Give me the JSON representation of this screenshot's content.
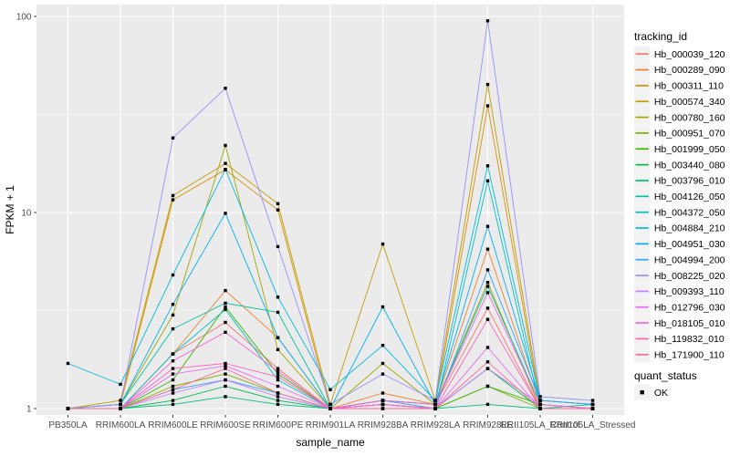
{
  "chart_data": {
    "type": "line",
    "title": "",
    "xlabel": "sample_name",
    "ylabel": "FPKM + 1",
    "y_scale": "log10",
    "ylim": [
      0.95,
      110
    ],
    "y_ticks": [
      1,
      10,
      100
    ],
    "y_tick_labels": [
      "1",
      "10",
      "100"
    ],
    "y_minor_ticks": [
      3.1623,
      31.623
    ],
    "grid": true,
    "panel_background": "#EBEBEB",
    "gridline_color": "#FFFFFF",
    "point_shape": "filled-square",
    "point_color": "#000000",
    "categories": [
      "PB350LA",
      "RRIM600LA",
      "RRIM600LE",
      "RRIM600SE",
      "RRIM600PE",
      "RRIM901LA",
      "RRIM928BA",
      "RRIM928LA",
      "RRIM928LE",
      "RRII105LA_Control",
      "RRII105LA_Stressed"
    ],
    "series": [
      {
        "name": "Hb_000039_120",
        "color": "#F8766D",
        "values": [
          1.0,
          1.0,
          1.9,
          2.75,
          1.6,
          1.0,
          1.1,
          1.05,
          3.25,
          1.0,
          1.0
        ]
      },
      {
        "name": "Hb_000289_090",
        "color": "#EA8331",
        "values": [
          1.0,
          1.0,
          1.9,
          4.0,
          2.3,
          1.0,
          1.2,
          1.05,
          6.5,
          1.05,
          1.0
        ]
      },
      {
        "name": "Hb_000311_110",
        "color": "#D89000",
        "values": [
          1.0,
          1.05,
          11.6,
          16.5,
          10.3,
          1.0,
          1.1,
          1.05,
          35.0,
          1.05,
          1.0
        ]
      },
      {
        "name": "Hb_000574_340",
        "color": "#C09B00",
        "values": [
          1.0,
          1.1,
          12.2,
          17.8,
          11.1,
          1.05,
          6.9,
          1.1,
          45.0,
          1.1,
          1.05
        ]
      },
      {
        "name": "Hb_000780_160",
        "color": "#A3A500",
        "values": [
          1.0,
          1.05,
          3.0,
          22.0,
          2.0,
          1.0,
          1.7,
          1.05,
          4.4,
          1.0,
          1.0
        ]
      },
      {
        "name": "Hb_000951_070",
        "color": "#7CAE00",
        "values": [
          1.0,
          1.0,
          1.3,
          1.5,
          1.2,
          1.0,
          1.05,
          1.0,
          1.3,
          1.0,
          1.0
        ]
      },
      {
        "name": "Hb_001999_050",
        "color": "#39B600",
        "values": [
          1.0,
          1.0,
          1.4,
          3.3,
          1.5,
          1.0,
          1.05,
          1.0,
          1.3,
          1.05,
          1.0
        ]
      },
      {
        "name": "Hb_003440_080",
        "color": "#00BB4E",
        "values": [
          1.0,
          1.0,
          1.1,
          1.3,
          1.1,
          1.0,
          1.0,
          1.0,
          1.6,
          1.0,
          1.0
        ]
      },
      {
        "name": "Hb_003796_010",
        "color": "#00BF7D",
        "values": [
          1.0,
          1.0,
          1.05,
          1.15,
          1.05,
          1.0,
          1.0,
          1.0,
          1.05,
          1.0,
          1.05
        ]
      },
      {
        "name": "Hb_004126_050",
        "color": "#00C1A3",
        "values": [
          1.0,
          1.05,
          2.55,
          3.45,
          3.1,
          1.0,
          1.1,
          1.05,
          4.2,
          1.05,
          1.0
        ]
      },
      {
        "name": "Hb_004372_050",
        "color": "#00BFC4",
        "values": [
          1.0,
          1.0,
          1.9,
          3.2,
          1.4,
          1.0,
          1.05,
          1.0,
          14.5,
          1.0,
          1.0
        ]
      },
      {
        "name": "Hb_004884_210",
        "color": "#00BAE0",
        "values": [
          1.7,
          1.33,
          4.8,
          16.6,
          3.7,
          1.25,
          2.1,
          1.1,
          17.3,
          1.1,
          1.05
        ]
      },
      {
        "name": "Hb_004951_030",
        "color": "#00B0F6",
        "values": [
          1.0,
          1.05,
          3.4,
          9.9,
          2.3,
          1.0,
          3.3,
          1.05,
          8.5,
          1.1,
          1.05
        ]
      },
      {
        "name": "Hb_004994_200",
        "color": "#35A2FF",
        "values": [
          1.0,
          1.0,
          1.25,
          1.4,
          1.2,
          1.0,
          1.1,
          1.0,
          5.1,
          1.1,
          1.05
        ]
      },
      {
        "name": "Hb_008225_020",
        "color": "#9590FF",
        "values": [
          1.0,
          1.05,
          24.0,
          43.0,
          6.7,
          1.05,
          1.5,
          1.1,
          95.0,
          1.15,
          1.1
        ]
      },
      {
        "name": "Hb_009393_110",
        "color": "#C77CFF",
        "values": [
          1.0,
          1.0,
          1.2,
          1.4,
          1.15,
          1.0,
          1.05,
          1.0,
          1.6,
          1.05,
          1.0
        ]
      },
      {
        "name": "Hb_012796_030",
        "color": "#E76BF3",
        "values": [
          1.0,
          1.0,
          1.5,
          1.65,
          1.3,
          1.0,
          1.05,
          1.0,
          2.05,
          1.0,
          1.0
        ]
      },
      {
        "name": "Hb_018105_010",
        "color": "#FA62DB",
        "values": [
          1.0,
          1.0,
          1.75,
          2.45,
          1.55,
          1.0,
          1.1,
          1.05,
          3.9,
          1.05,
          1.0
        ]
      },
      {
        "name": "Hb_119832_010",
        "color": "#FF62BC",
        "values": [
          1.0,
          1.0,
          1.6,
          1.7,
          1.45,
          1.0,
          1.05,
          1.0,
          2.85,
          1.0,
          1.0
        ]
      },
      {
        "name": "Hb_171900_110",
        "color": "#FF6A98",
        "values": [
          1.0,
          1.0,
          1.25,
          1.6,
          1.2,
          1.0,
          1.0,
          1.0,
          1.73,
          1.0,
          1.0
        ]
      }
    ],
    "legend": {
      "position": "right",
      "tracking_title": "tracking_id",
      "quant_title": "quant_status",
      "quant_entries": [
        {
          "label": "OK",
          "symbol": "filled-square",
          "color": "#000000"
        }
      ],
      "key_background": "#F2F2F2"
    }
  }
}
